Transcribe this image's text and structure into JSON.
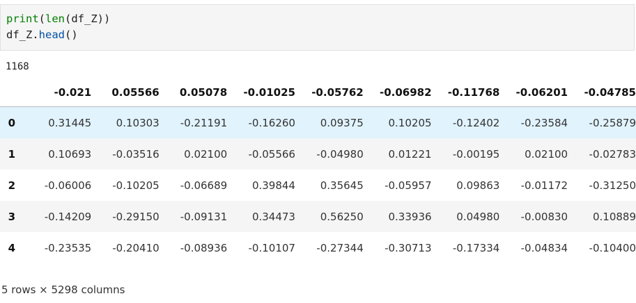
{
  "code_cell": {
    "line1": {
      "fn": "print",
      "open": "(",
      "inner_fn": "len",
      "args": "(df_Z))"
    },
    "line2": {
      "obj": "df_Z.",
      "method": "head",
      "args": "()"
    }
  },
  "stdout": "1168",
  "table": {
    "columns": [
      "-0.021",
      "0.05566",
      "0.05078",
      "-0.01025",
      "-0.05762",
      "-0.06982",
      "-0.11768",
      "-0.06201",
      "-0.04785"
    ],
    "rows": [
      {
        "index": "0",
        "values": [
          "0.31445",
          "0.10303",
          "-0.21191",
          "-0.16260",
          "0.09375",
          "0.10205",
          "-0.12402",
          "-0.23584",
          "-0.25879"
        ]
      },
      {
        "index": "1",
        "values": [
          "0.10693",
          "-0.03516",
          "0.02100",
          "-0.05566",
          "-0.04980",
          "0.01221",
          "-0.00195",
          "0.02100",
          "-0.02783"
        ]
      },
      {
        "index": "2",
        "values": [
          "-0.06006",
          "-0.10205",
          "-0.06689",
          "0.39844",
          "0.35645",
          "-0.05957",
          "0.09863",
          "-0.01172",
          "-0.31250"
        ]
      },
      {
        "index": "3",
        "values": [
          "-0.14209",
          "-0.29150",
          "-0.09131",
          "0.34473",
          "0.56250",
          "0.33936",
          "0.04980",
          "-0.00830",
          "0.10889"
        ]
      },
      {
        "index": "4",
        "values": [
          "-0.23535",
          "-0.20410",
          "-0.08936",
          "-0.10107",
          "-0.27344",
          "-0.30713",
          "-0.17334",
          "-0.04834",
          "-0.10400"
        ]
      }
    ]
  },
  "footer": "5 rows × 5298 columns",
  "colors": {
    "keyword": "#008000",
    "method": "#0451a5",
    "hover_row": "#e1f3fd"
  }
}
